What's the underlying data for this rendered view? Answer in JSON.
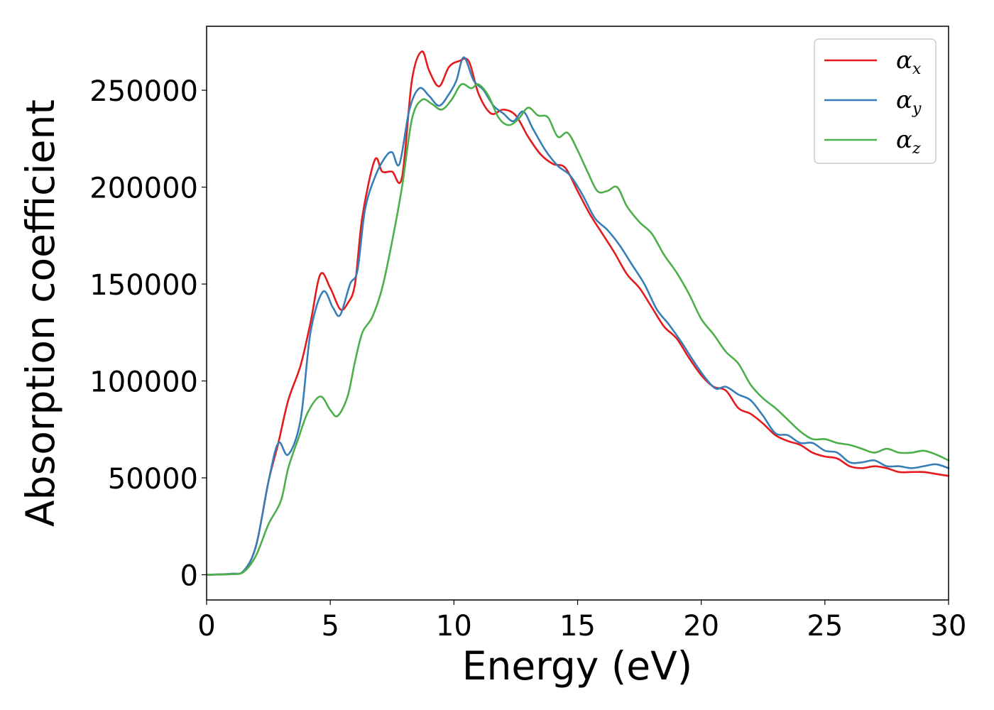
{
  "chart_data": {
    "type": "line",
    "title": "",
    "xlabel": "Energy (eV)",
    "ylabel": "Absorption coefficient",
    "xlim": [
      0,
      30
    ],
    "ylim": [
      -13000,
      283000
    ],
    "xticks": [
      0,
      5,
      10,
      15,
      20,
      25,
      30
    ],
    "yticks": [
      0,
      50000,
      100000,
      150000,
      200000,
      250000
    ],
    "grid": false,
    "legend_position": "top-right",
    "series": [
      {
        "name": "α_x",
        "base": "α",
        "sub": "x",
        "color": "#e41a1c",
        "x": [
          0,
          1,
          1.5,
          2,
          2.5,
          2.9,
          3.3,
          3.8,
          4.2,
          4.6,
          5.0,
          5.4,
          5.7,
          6.0,
          6.3,
          6.8,
          7.1,
          7.5,
          7.9,
          8.3,
          8.7,
          9.0,
          9.4,
          9.8,
          10.2,
          10.6,
          11.0,
          11.5,
          12.0,
          12.5,
          13.0,
          13.5,
          14.0,
          14.5,
          15.0,
          15.5,
          16.0,
          16.5,
          17.0,
          17.5,
          18.0,
          18.5,
          19.0,
          19.5,
          20.0,
          20.5,
          21.0,
          21.5,
          22.0,
          22.5,
          23.0,
          23.5,
          24.0,
          24.5,
          25.0,
          25.5,
          26.0,
          26.5,
          27.0,
          27.5,
          28.0,
          28.5,
          29.0,
          29.5,
          30.0
        ],
        "values": [
          0,
          500,
          2000,
          15000,
          48000,
          68000,
          90000,
          108000,
          130000,
          155000,
          148000,
          137000,
          140000,
          150000,
          185000,
          214000,
          208000,
          208000,
          205000,
          255000,
          270000,
          260000,
          252000,
          262000,
          265000,
          265000,
          248000,
          238000,
          240000,
          237000,
          226000,
          217000,
          212000,
          210000,
          198000,
          186000,
          176000,
          166000,
          155000,
          148000,
          138000,
          128000,
          122000,
          112000,
          103000,
          97000,
          95000,
          86000,
          83000,
          78000,
          72000,
          69000,
          67000,
          63000,
          61000,
          60000,
          56000,
          55000,
          56000,
          55000,
          53000,
          53000,
          53000,
          52000,
          51000
        ]
      },
      {
        "name": "α_y",
        "base": "α",
        "sub": "y",
        "color": "#377eb8",
        "x": [
          0,
          1,
          1.5,
          2,
          2.5,
          2.9,
          3.3,
          3.8,
          4.2,
          4.7,
          5.1,
          5.4,
          5.8,
          6.1,
          6.4,
          6.8,
          7.2,
          7.5,
          7.8,
          8.2,
          8.6,
          9.0,
          9.4,
          9.8,
          10.1,
          10.4,
          10.8,
          11.2,
          11.6,
          12.0,
          12.4,
          12.8,
          13.2,
          13.7,
          14.2,
          14.7,
          15.2,
          15.7,
          16.2,
          16.7,
          17.2,
          17.7,
          18.2,
          18.7,
          19.2,
          19.7,
          20.2,
          20.6,
          21.0,
          21.5,
          22.0,
          22.5,
          23.0,
          23.5,
          24.0,
          24.5,
          25.0,
          25.5,
          26.0,
          26.5,
          27.0,
          27.5,
          28.0,
          28.5,
          29.0,
          29.5,
          30.0
        ],
        "values": [
          0,
          500,
          2000,
          15000,
          48000,
          68000,
          62000,
          80000,
          125000,
          146000,
          138000,
          134000,
          150000,
          157000,
          188000,
          205000,
          215000,
          218000,
          212000,
          240000,
          251000,
          247000,
          242000,
          248000,
          255000,
          267000,
          255000,
          250000,
          242000,
          238000,
          234000,
          239000,
          230000,
          219000,
          211000,
          206000,
          196000,
          184000,
          178000,
          170000,
          160000,
          150000,
          137000,
          129000,
          120000,
          110000,
          101000,
          96000,
          97000,
          93000,
          90000,
          82000,
          73000,
          72000,
          68000,
          68000,
          64000,
          63000,
          58000,
          58000,
          59000,
          56000,
          56000,
          55000,
          56000,
          57000,
          55000
        ]
      },
      {
        "name": "α_z",
        "base": "α",
        "sub": "z",
        "color": "#4daf4a",
        "x": [
          0,
          1,
          1.5,
          2,
          2.5,
          3.0,
          3.3,
          3.7,
          4.1,
          4.6,
          5.0,
          5.3,
          5.7,
          6.0,
          6.3,
          6.7,
          7.1,
          7.5,
          7.9,
          8.3,
          8.7,
          9.1,
          9.5,
          9.9,
          10.3,
          10.7,
          11.0,
          11.4,
          11.8,
          12.2,
          12.6,
          13.0,
          13.4,
          13.8,
          14.2,
          14.6,
          15.0,
          15.4,
          15.8,
          16.2,
          16.6,
          17.0,
          17.5,
          18.0,
          18.5,
          19.0,
          19.5,
          20.0,
          20.5,
          21.0,
          21.5,
          22.0,
          22.5,
          23.0,
          23.5,
          24.0,
          24.5,
          25.0,
          25.5,
          26.0,
          26.5,
          27.0,
          27.5,
          28.0,
          28.5,
          29.0,
          29.5,
          30.0
        ],
        "values": [
          0,
          300,
          1500,
          10000,
          26000,
          38000,
          55000,
          70000,
          84000,
          92000,
          85000,
          82000,
          92000,
          110000,
          125000,
          133000,
          148000,
          172000,
          200000,
          235000,
          245000,
          243000,
          240000,
          245000,
          253000,
          251000,
          253000,
          247000,
          236000,
          232000,
          235000,
          241000,
          237000,
          236000,
          226000,
          228000,
          219000,
          208000,
          198000,
          198000,
          200000,
          190000,
          182000,
          176000,
          165000,
          156000,
          145000,
          132000,
          124000,
          115000,
          109000,
          98000,
          91000,
          86000,
          80000,
          74000,
          70000,
          70000,
          68000,
          67000,
          65000,
          63000,
          65000,
          63000,
          63000,
          64000,
          62000,
          59000
        ]
      }
    ]
  }
}
